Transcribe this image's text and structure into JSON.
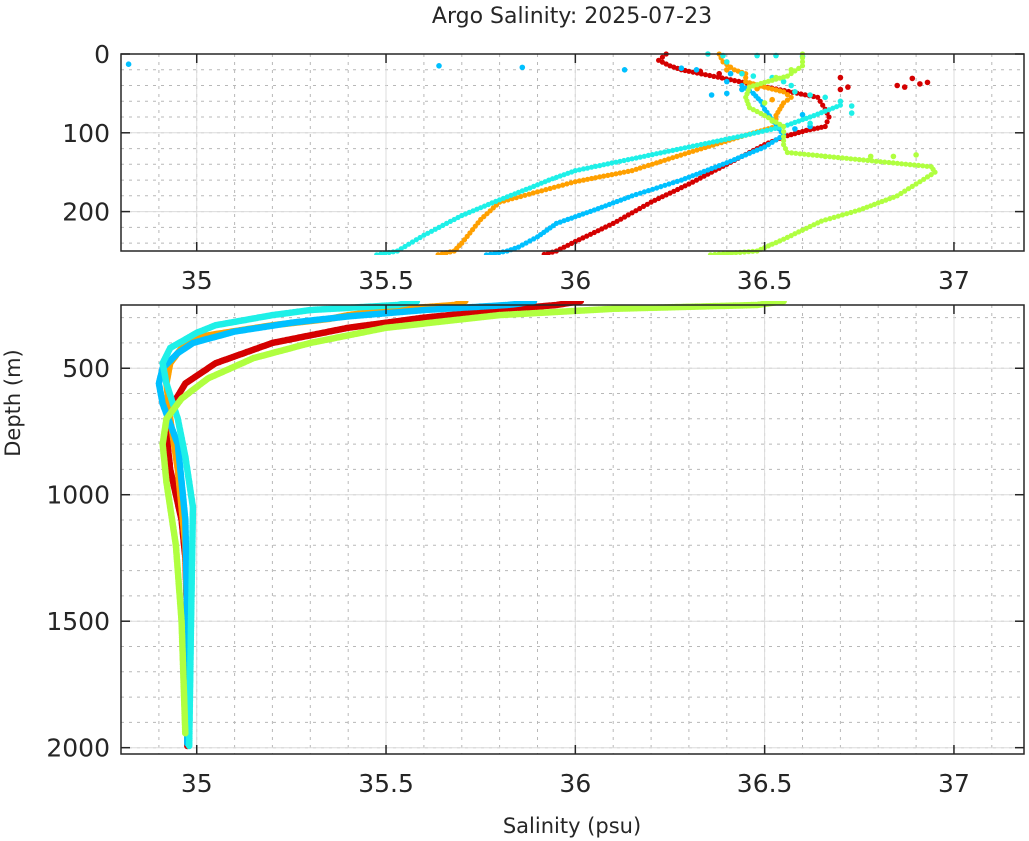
{
  "chart_data": {
    "type": "scatter",
    "title": "Argo Salinity: 2025-07-23",
    "xlabel": "Salinity (psu)",
    "ylabel": "Depth (m)",
    "grid": true,
    "legend": "none",
    "panels": [
      {
        "name": "upper",
        "xlim": [
          34.8,
          37.185
        ],
        "ylim": [
          0,
          250
        ],
        "y_reversed": true,
        "xticks": [
          35,
          35.5,
          36,
          36.5,
          37
        ],
        "xtick_labels": [
          "35",
          "35.5",
          "36",
          "36.5",
          "37"
        ],
        "yticks": [
          0,
          100,
          200
        ],
        "ytick_labels": [
          "0",
          "100",
          "200"
        ],
        "x_minor_step": 0.1,
        "y_minor_step": 20
      },
      {
        "name": "lower",
        "xlim": [
          34.8,
          37.185
        ],
        "ylim": [
          250,
          2025
        ],
        "y_reversed": true,
        "xticks": [
          35,
          35.5,
          36,
          36.5,
          37
        ],
        "xtick_labels": [
          "35",
          "35.5",
          "36",
          "36.5",
          "37"
        ],
        "yticks": [
          500,
          1000,
          1500,
          2000
        ],
        "ytick_labels": [
          "500",
          "1000",
          "1500",
          "2000"
        ],
        "x_minor_step": 0.1,
        "y_minor_step": 100
      }
    ],
    "series": [
      {
        "name": "profile-red",
        "color": "#d40000",
        "profile": [
          [
            36.24,
            0
          ],
          [
            36.22,
            8
          ],
          [
            36.25,
            15
          ],
          [
            36.28,
            20
          ],
          [
            36.3,
            22
          ],
          [
            36.64,
            55
          ],
          [
            36.66,
            70
          ],
          [
            36.67,
            80
          ],
          [
            36.66,
            92
          ],
          [
            36.61,
            97
          ],
          [
            36.55,
            105
          ],
          [
            36.5,
            115
          ],
          [
            36.4,
            140
          ],
          [
            36.3,
            165
          ],
          [
            36.2,
            188
          ],
          [
            36.1,
            215
          ],
          [
            36.0,
            238
          ],
          [
            35.95,
            250
          ],
          [
            35.8,
            270
          ],
          [
            35.6,
            300
          ],
          [
            35.4,
            340
          ],
          [
            35.2,
            400
          ],
          [
            35.05,
            480
          ],
          [
            34.97,
            560
          ],
          [
            34.93,
            660
          ],
          [
            34.92,
            760
          ],
          [
            34.93,
            900
          ],
          [
            34.96,
            1100
          ],
          [
            34.97,
            1250
          ],
          [
            34.975,
            1500
          ],
          [
            34.975,
            2000
          ]
        ],
        "scattered": [
          [
            36.33,
            22
          ],
          [
            36.38,
            25
          ],
          [
            36.7,
            30
          ],
          [
            36.72,
            42
          ],
          [
            36.7,
            45
          ],
          [
            36.85,
            40
          ],
          [
            36.89,
            31
          ],
          [
            36.91,
            38
          ],
          [
            36.93,
            36
          ],
          [
            36.87,
            42
          ]
        ]
      },
      {
        "name": "profile-orange",
        "color": "#ffa000",
        "profile": [
          [
            36.38,
            0
          ],
          [
            36.39,
            10
          ],
          [
            36.42,
            20
          ],
          [
            36.45,
            25
          ],
          [
            36.45,
            35
          ],
          [
            36.5,
            42
          ],
          [
            36.55,
            48
          ],
          [
            36.57,
            55
          ],
          [
            36.55,
            62
          ],
          [
            36.53,
            78
          ],
          [
            36.53,
            92
          ],
          [
            36.45,
            103
          ],
          [
            36.3,
            125
          ],
          [
            36.15,
            148
          ],
          [
            36.0,
            162
          ],
          [
            35.9,
            175
          ],
          [
            35.8,
            188
          ],
          [
            35.75,
            210
          ],
          [
            35.7,
            240
          ],
          [
            35.68,
            250
          ],
          [
            35.5,
            270
          ],
          [
            35.4,
            290
          ],
          [
            35.35,
            305
          ],
          [
            35.2,
            330
          ],
          [
            35.05,
            365
          ],
          [
            34.99,
            380
          ],
          [
            34.98,
            400
          ],
          [
            34.96,
            420
          ],
          [
            34.93,
            480
          ],
          [
            34.92,
            560
          ],
          [
            34.93,
            700
          ],
          [
            34.95,
            900
          ],
          [
            34.97,
            1200
          ],
          [
            34.975,
            1500
          ],
          [
            34.975,
            1990
          ]
        ],
        "scattered": [
          [
            36.46,
            40
          ],
          [
            36.48,
            44
          ],
          [
            36.52,
            58
          ],
          [
            36.4,
            20
          ]
        ]
      },
      {
        "name": "profile-sky-blue",
        "color": "#00c0ff",
        "profile": [
          [
            36.44,
            40
          ],
          [
            36.47,
            50
          ],
          [
            36.49,
            60
          ],
          [
            36.5,
            70
          ],
          [
            36.55,
            103
          ],
          [
            36.5,
            118
          ],
          [
            36.4,
            138
          ],
          [
            36.28,
            160
          ],
          [
            36.15,
            180
          ],
          [
            36.05,
            198
          ],
          [
            35.95,
            215
          ],
          [
            35.9,
            232
          ],
          [
            35.85,
            245
          ],
          [
            35.82,
            250
          ],
          [
            35.6,
            270
          ],
          [
            35.4,
            295
          ],
          [
            35.25,
            320
          ],
          [
            35.1,
            355
          ],
          [
            34.99,
            400
          ],
          [
            34.95,
            440
          ],
          [
            34.91,
            500
          ],
          [
            34.9,
            560
          ],
          [
            34.91,
            640
          ],
          [
            34.95,
            800
          ],
          [
            34.97,
            1100
          ],
          [
            34.975,
            1500
          ],
          [
            34.975,
            1990
          ]
        ],
        "scattered": [
          [
            34.82,
            13
          ],
          [
            35.64,
            15
          ],
          [
            35.86,
            17
          ],
          [
            36.13,
            20
          ],
          [
            36.28,
            18
          ],
          [
            36.32,
            20
          ],
          [
            36.41,
            25
          ],
          [
            36.4,
            35
          ],
          [
            36.36,
            52
          ],
          [
            36.4,
            50
          ],
          [
            36.44,
            45
          ],
          [
            36.58,
            95
          ],
          [
            36.62,
            92
          ],
          [
            36.6,
            77
          ]
        ]
      },
      {
        "name": "profile-cyan",
        "color": "#1ef0e8",
        "profile": [
          [
            36.7,
            65
          ],
          [
            36.62,
            80
          ],
          [
            36.55,
            92
          ],
          [
            36.45,
            103
          ],
          [
            36.3,
            118
          ],
          [
            36.15,
            133
          ],
          [
            36.0,
            148
          ],
          [
            35.93,
            160
          ],
          [
            35.88,
            170
          ],
          [
            35.8,
            185
          ],
          [
            35.7,
            205
          ],
          [
            35.6,
            230
          ],
          [
            35.53,
            250
          ],
          [
            35.3,
            270
          ],
          [
            35.2,
            290
          ],
          [
            35.05,
            330
          ],
          [
            35.0,
            360
          ],
          [
            34.93,
            420
          ],
          [
            34.91,
            480
          ],
          [
            34.92,
            560
          ],
          [
            34.95,
            700
          ],
          [
            34.97,
            850
          ],
          [
            34.99,
            1050
          ],
          [
            34.985,
            1500
          ],
          [
            34.98,
            2000
          ]
        ],
        "scattered": [
          [
            36.35,
            0
          ],
          [
            36.39,
            2
          ],
          [
            36.48,
            2
          ],
          [
            36.53,
            2
          ],
          [
            36.6,
            3
          ],
          [
            36.4,
            10
          ],
          [
            36.44,
            25
          ],
          [
            36.47,
            28
          ],
          [
            36.52,
            30
          ],
          [
            36.55,
            35
          ],
          [
            36.57,
            40
          ],
          [
            36.58,
            48
          ],
          [
            36.62,
            52
          ],
          [
            36.66,
            55
          ],
          [
            36.7,
            60
          ],
          [
            36.73,
            66
          ],
          [
            36.73,
            75
          ],
          [
            36.62,
            88
          ]
        ]
      },
      {
        "name": "profile-yellow-green",
        "color": "#b0ff40",
        "profile": [
          [
            36.6,
            0
          ],
          [
            36.6,
            15
          ],
          [
            36.56,
            28
          ],
          [
            36.5,
            36
          ],
          [
            36.46,
            42
          ],
          [
            36.45,
            55
          ],
          [
            36.46,
            68
          ],
          [
            36.5,
            78
          ],
          [
            36.55,
            92
          ],
          [
            36.55,
            105
          ],
          [
            36.55,
            115
          ],
          [
            36.56,
            125
          ],
          [
            36.94,
            143
          ],
          [
            36.95,
            150
          ],
          [
            36.9,
            165
          ],
          [
            36.85,
            180
          ],
          [
            36.75,
            198
          ],
          [
            36.65,
            212
          ],
          [
            36.55,
            235
          ],
          [
            36.48,
            250
          ],
          [
            36.1,
            265
          ],
          [
            35.8,
            290
          ],
          [
            35.5,
            340
          ],
          [
            35.3,
            400
          ],
          [
            35.15,
            460
          ],
          [
            35.03,
            540
          ],
          [
            34.96,
            620
          ],
          [
            34.92,
            700
          ],
          [
            34.91,
            800
          ],
          [
            34.92,
            950
          ],
          [
            34.945,
            1200
          ],
          [
            34.96,
            1500
          ],
          [
            34.97,
            1950
          ]
        ],
        "scattered": [
          [
            36.57,
            20
          ],
          [
            36.53,
            30
          ],
          [
            36.5,
            62
          ],
          [
            36.52,
            85
          ],
          [
            36.66,
            130
          ],
          [
            36.78,
            130
          ],
          [
            36.84,
            130
          ],
          [
            36.9,
            128
          ]
        ]
      }
    ]
  }
}
